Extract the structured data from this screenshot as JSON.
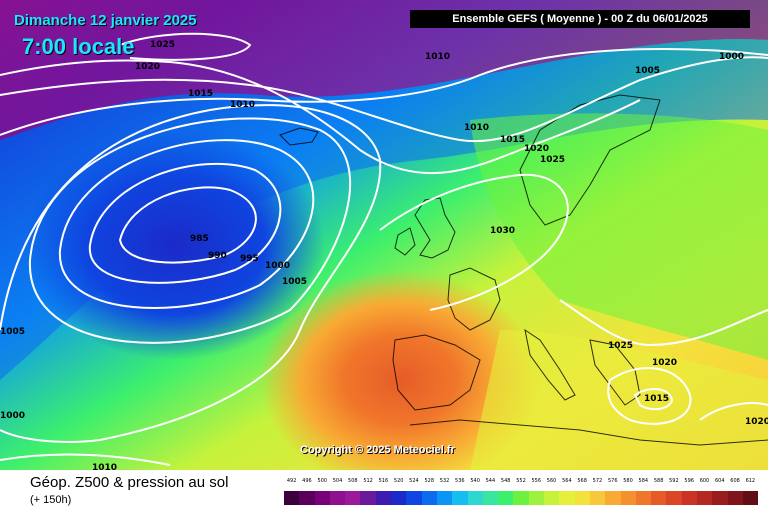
{
  "title": {
    "date": "Dimanche 12 janvier 2025",
    "time": "7:00 locale"
  },
  "run_info": "Ensemble GEFS  ( Moyenne )  -  00 Z du 06/01/2025",
  "copyright": "Copyright © 2025 Meteociel.fr",
  "parameter": "Géop. Z500 & pression au sol",
  "lead_time": "(+ 150h)",
  "legend": {
    "values": [
      "492",
      "496",
      "500",
      "504",
      "508",
      "512",
      "516",
      "520",
      "524",
      "528",
      "532",
      "536",
      "540",
      "544",
      "548",
      "552",
      "556",
      "560",
      "564",
      "568",
      "572",
      "576",
      "580",
      "584",
      "588",
      "592",
      "596",
      "600",
      "604",
      "608",
      "612"
    ],
    "colors": [
      "#3d003d",
      "#5a005a",
      "#780078",
      "#8f108f",
      "#9b199b",
      "#6a1a9a",
      "#3b1bb0",
      "#1b2ac8",
      "#0f45e0",
      "#0b6cf0",
      "#0b96f5",
      "#15bdf0",
      "#2ed8d0",
      "#39e6a0",
      "#3cef6d",
      "#6cf23e",
      "#9cf23c",
      "#c6f23c",
      "#e6f03c",
      "#f4e23c",
      "#f8c73a",
      "#f8aa34",
      "#f5902e",
      "#f0762a",
      "#e65c28",
      "#da4626",
      "#c93424",
      "#b32822",
      "#9a1d1e",
      "#7f141a",
      "#600d14"
    ]
  },
  "isobars": [
    {
      "value": "1025",
      "region": "north-west"
    },
    {
      "value": "1020",
      "region": "north-west"
    },
    {
      "value": "1015",
      "region": "north-west"
    },
    {
      "value": "1010",
      "region": "north-west"
    },
    {
      "value": "1010",
      "region": "north"
    },
    {
      "value": "1005",
      "region": "north-east"
    },
    {
      "value": "1000",
      "region": "north-east"
    },
    {
      "value": "1010",
      "region": "north-central"
    },
    {
      "value": "1015",
      "region": "north-central"
    },
    {
      "value": "1020",
      "region": "scandinavia"
    },
    {
      "value": "1025",
      "region": "scandinavia"
    },
    {
      "value": "1030",
      "region": "north sea"
    },
    {
      "value": "985",
      "region": "low center"
    },
    {
      "value": "990",
      "region": "low center"
    },
    {
      "value": "995",
      "region": "low center"
    },
    {
      "value": "1000",
      "region": "low center"
    },
    {
      "value": "1005",
      "region": "low center"
    },
    {
      "value": "1005",
      "region": "west"
    },
    {
      "value": "1000",
      "region": "south-west"
    },
    {
      "value": "1010",
      "region": "south-west"
    },
    {
      "value": "1025",
      "region": "balkans"
    },
    {
      "value": "1020",
      "region": "greece"
    },
    {
      "value": "1015",
      "region": "greece"
    },
    {
      "value": "1020",
      "region": "east"
    }
  ],
  "colors": {
    "title": "#19e6ff",
    "isobar": "#ffffff"
  }
}
